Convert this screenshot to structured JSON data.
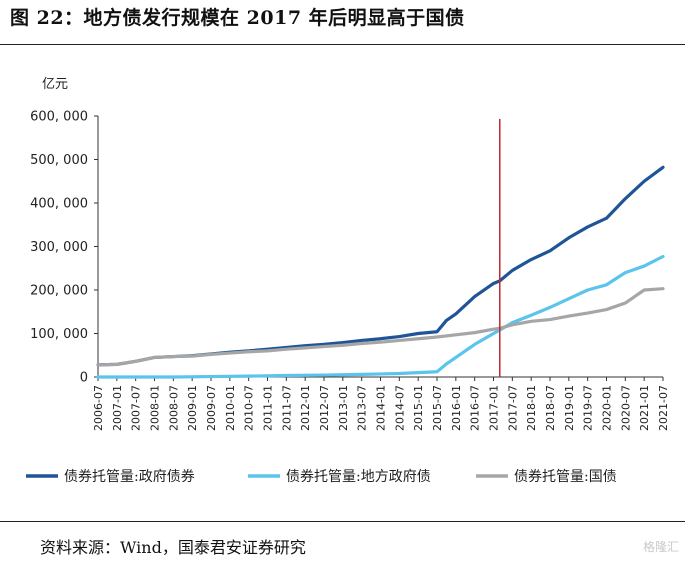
{
  "header": {
    "title": "图 22：地方债发行规模在 2017 年后明显高于国债"
  },
  "footer": {
    "source": "资料来源：Wind，国泰君安证券研究",
    "watermark": "格隆汇"
  },
  "colors": {
    "gov": "#1f5597",
    "local": "#5bc4ec",
    "national": "#a6a6a6",
    "marker": "#c0282c",
    "axis": "#333333"
  },
  "chart_data": {
    "type": "line",
    "unit_label": "亿元",
    "ylim": [
      0,
      600000
    ],
    "yticks": [
      0,
      100000,
      200000,
      300000,
      400000,
      500000,
      600000
    ],
    "ytick_labels": [
      "0",
      "100, 000",
      "200, 000",
      "300, 000",
      "400, 000",
      "500, 000",
      "600, 000"
    ],
    "xlim": [
      "2006-07",
      "2021-07"
    ],
    "xtick_labels": [
      "2006-07",
      "2007-01",
      "2007-07",
      "2008-01",
      "2008-07",
      "2009-01",
      "2009-07",
      "2010-01",
      "2010-07",
      "2011-01",
      "2011-07",
      "2012-01",
      "2012-07",
      "2013-01",
      "2013-07",
      "2014-01",
      "2014-07",
      "2015-01",
      "2015-07",
      "2016-01",
      "2016-07",
      "2017-01",
      "2017-07",
      "2018-01",
      "2018-07",
      "2019-01",
      "2019-07",
      "2020-01",
      "2020-07",
      "2021-01",
      "2021-07"
    ],
    "vertical_marker": "2017-03",
    "series": [
      {
        "name": "债券托管量:政府债券",
        "color": "#1f5597",
        "points": [
          [
            "2006-07",
            28000
          ],
          [
            "2007-01",
            29000
          ],
          [
            "2007-07",
            36000
          ],
          [
            "2008-01",
            45000
          ],
          [
            "2008-07",
            47000
          ],
          [
            "2009-01",
            49000
          ],
          [
            "2009-07",
            53000
          ],
          [
            "2010-01",
            57000
          ],
          [
            "2010-07",
            60000
          ],
          [
            "2011-01",
            64000
          ],
          [
            "2011-07",
            68000
          ],
          [
            "2012-01",
            72000
          ],
          [
            "2012-07",
            75000
          ],
          [
            "2013-01",
            79000
          ],
          [
            "2013-07",
            84000
          ],
          [
            "2014-01",
            88000
          ],
          [
            "2014-07",
            93000
          ],
          [
            "2015-01",
            100000
          ],
          [
            "2015-07",
            104000
          ],
          [
            "2015-10",
            130000
          ],
          [
            "2016-01",
            145000
          ],
          [
            "2016-07",
            185000
          ],
          [
            "2017-01",
            215000
          ],
          [
            "2017-03",
            221000
          ],
          [
            "2017-07",
            245000
          ],
          [
            "2018-01",
            270000
          ],
          [
            "2018-07",
            290000
          ],
          [
            "2019-01",
            320000
          ],
          [
            "2019-07",
            345000
          ],
          [
            "2020-01",
            365000
          ],
          [
            "2020-07",
            410000
          ],
          [
            "2021-01",
            450000
          ],
          [
            "2021-07",
            482000
          ]
        ]
      },
      {
        "name": "债券托管量:地方政府债",
        "color": "#5bc4ec",
        "points": [
          [
            "2006-07",
            0
          ],
          [
            "2008-07",
            0
          ],
          [
            "2009-07",
            1000
          ],
          [
            "2010-07",
            2000
          ],
          [
            "2011-07",
            3500
          ],
          [
            "2012-07",
            4500
          ],
          [
            "2013-07",
            6000
          ],
          [
            "2014-07",
            8000
          ],
          [
            "2015-01",
            10000
          ],
          [
            "2015-07",
            12000
          ],
          [
            "2015-10",
            30000
          ],
          [
            "2016-01",
            45000
          ],
          [
            "2016-07",
            75000
          ],
          [
            "2017-01",
            100000
          ],
          [
            "2017-03",
            108000
          ],
          [
            "2017-07",
            125000
          ],
          [
            "2018-01",
            142000
          ],
          [
            "2018-07",
            160000
          ],
          [
            "2019-01",
            180000
          ],
          [
            "2019-07",
            200000
          ],
          [
            "2020-01",
            212000
          ],
          [
            "2020-07",
            240000
          ],
          [
            "2021-01",
            255000
          ],
          [
            "2021-07",
            277000
          ]
        ]
      },
      {
        "name": "债券托管量:国债",
        "color": "#a6a6a6",
        "points": [
          [
            "2006-07",
            28000
          ],
          [
            "2007-01",
            29000
          ],
          [
            "2007-07",
            36000
          ],
          [
            "2008-01",
            45000
          ],
          [
            "2008-07",
            47000
          ],
          [
            "2009-01",
            48000
          ],
          [
            "2009-07",
            52000
          ],
          [
            "2010-01",
            55000
          ],
          [
            "2010-07",
            58000
          ],
          [
            "2011-01",
            60000
          ],
          [
            "2011-07",
            64000
          ],
          [
            "2012-01",
            67000
          ],
          [
            "2012-07",
            70000
          ],
          [
            "2013-01",
            73000
          ],
          [
            "2013-07",
            77000
          ],
          [
            "2014-01",
            80000
          ],
          [
            "2014-07",
            84000
          ],
          [
            "2015-01",
            88000
          ],
          [
            "2015-07",
            92000
          ],
          [
            "2016-01",
            97000
          ],
          [
            "2016-07",
            102000
          ],
          [
            "2017-01",
            110000
          ],
          [
            "2017-03",
            112000
          ],
          [
            "2017-07",
            120000
          ],
          [
            "2018-01",
            128000
          ],
          [
            "2018-07",
            132000
          ],
          [
            "2019-01",
            140000
          ],
          [
            "2019-07",
            147000
          ],
          [
            "2020-01",
            155000
          ],
          [
            "2020-07",
            170000
          ],
          [
            "2021-01",
            200000
          ],
          [
            "2021-07",
            203000
          ]
        ]
      }
    ],
    "legend": [
      {
        "label": "债券托管量:政府债券",
        "color": "#1f5597"
      },
      {
        "label": "债券托管量:地方政府债",
        "color": "#5bc4ec"
      },
      {
        "label": "债券托管量:国债",
        "color": "#a6a6a6"
      }
    ],
    "legend_position": "bottom",
    "grid": false
  }
}
